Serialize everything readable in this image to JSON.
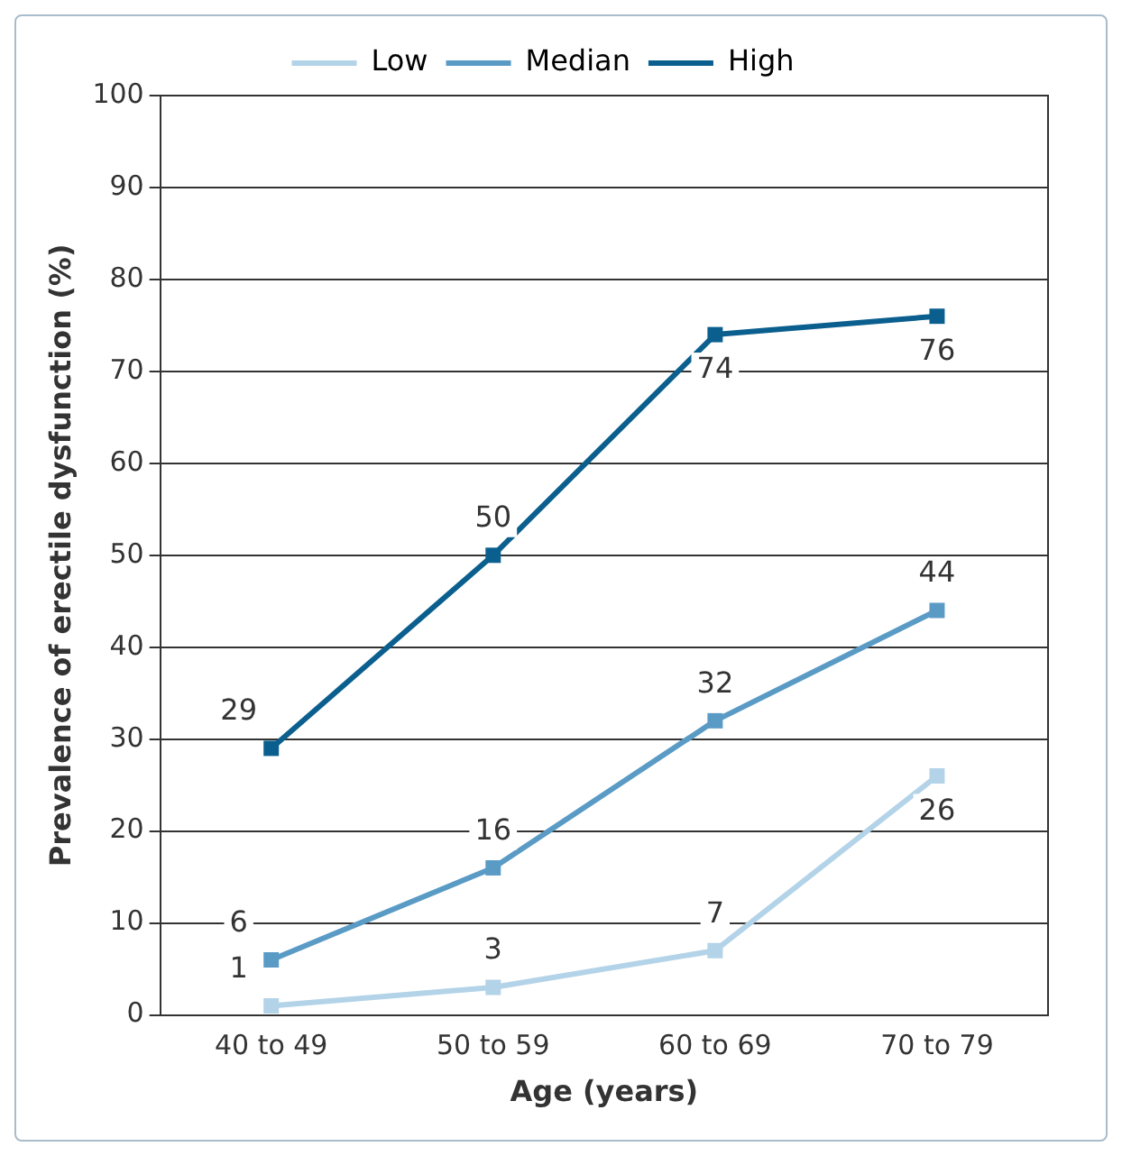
{
  "chart_data": {
    "type": "line",
    "xlabel": "Age (years)",
    "ylabel": "Prevalence of erectile dysfunction (%)",
    "categories": [
      "40 to 49",
      "50 to 59",
      "60 to 69",
      "70 to 79"
    ],
    "series": [
      {
        "name": "Low",
        "color": "#b3d3e8",
        "values": [
          1,
          3,
          7,
          26
        ]
      },
      {
        "name": "Median",
        "color": "#5a9bc6",
        "values": [
          6,
          16,
          32,
          44
        ]
      },
      {
        "name": "High",
        "color": "#0b5f8e",
        "values": [
          29,
          50,
          74,
          76
        ]
      }
    ],
    "ylim": [
      0,
      100
    ],
    "yticks": [
      0,
      10,
      20,
      30,
      40,
      50,
      60,
      70,
      80,
      90,
      100
    ],
    "grid": "y",
    "legend": "top",
    "marker": "square",
    "line_style": "solid",
    "data_labels": true
  }
}
